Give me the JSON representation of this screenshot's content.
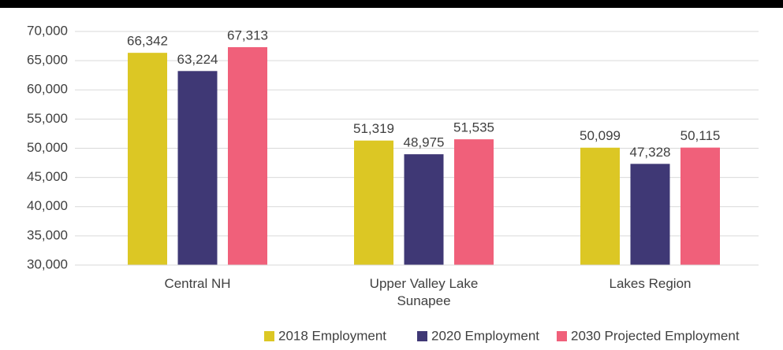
{
  "chart_data": {
    "type": "bar",
    "categories": [
      "Central NH",
      "Upper Valley Lake Sunapee",
      "Lakes Region"
    ],
    "series": [
      {
        "name": "2018 Employment",
        "color": "#dcc724",
        "values": [
          66342,
          51319,
          50099
        ],
        "value_labels": [
          "66,342",
          "51,319",
          "50,099"
        ]
      },
      {
        "name": "2020 Employment",
        "color": "#3f3875",
        "values": [
          63224,
          48975,
          47328
        ],
        "value_labels": [
          "63,224",
          "48,975",
          "47,328"
        ]
      },
      {
        "name": "2030 Projected Employment",
        "color": "#f0607a",
        "values": [
          67313,
          51535,
          50115
        ],
        "value_labels": [
          "67,313",
          "51,535",
          "50,115"
        ]
      }
    ],
    "ylim": [
      30000,
      70000
    ],
    "yticks": [
      {
        "value": 30000,
        "label": "30,000"
      },
      {
        "value": 35000,
        "label": "35,000"
      },
      {
        "value": 40000,
        "label": "40,000"
      },
      {
        "value": 45000,
        "label": "45,000"
      },
      {
        "value": 50000,
        "label": "50,000"
      },
      {
        "value": 55000,
        "label": "55,000"
      },
      {
        "value": 60000,
        "label": "60,000"
      },
      {
        "value": 65000,
        "label": "65,000"
      },
      {
        "value": 70000,
        "label": "70,000"
      }
    ],
    "grid": true,
    "legend": "bottom"
  }
}
